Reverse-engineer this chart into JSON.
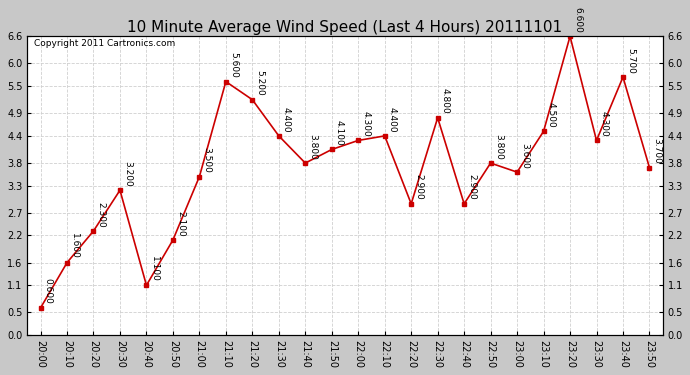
{
  "title": "10 Minute Average Wind Speed (Last 4 Hours) 20111101",
  "copyright": "Copyright 2011 Cartronics.com",
  "x_labels": [
    "20:00",
    "20:10",
    "20:20",
    "20:30",
    "20:40",
    "20:50",
    "21:00",
    "21:10",
    "21:20",
    "21:30",
    "21:40",
    "21:50",
    "22:00",
    "22:10",
    "22:20",
    "22:30",
    "22:40",
    "22:50",
    "23:00",
    "23:10",
    "23:20",
    "23:30",
    "23:40",
    "23:50"
  ],
  "y_values": [
    0.6,
    1.6,
    2.3,
    3.2,
    1.1,
    2.1,
    3.5,
    5.6,
    5.2,
    4.4,
    3.8,
    4.1,
    4.3,
    4.4,
    2.9,
    4.8,
    2.9,
    3.8,
    3.6,
    4.5,
    6.6,
    4.3,
    5.7,
    3.7
  ],
  "line_color": "#cc0000",
  "marker_color": "#cc0000",
  "outer_bg": "#c8c8c8",
  "plot_bg": "#ffffff",
  "grid_color": "#d0d0d0",
  "yticks": [
    0.0,
    0.5,
    1.1,
    1.6,
    2.2,
    2.7,
    3.3,
    3.8,
    4.4,
    4.9,
    5.5,
    6.0,
    6.6
  ],
  "title_fontsize": 11,
  "annotation_fontsize": 6.5,
  "tick_fontsize": 7,
  "copyright_fontsize": 6.5
}
